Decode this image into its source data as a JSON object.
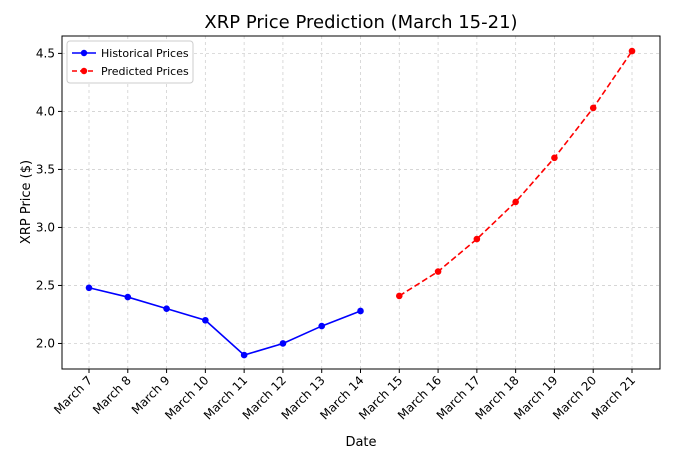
{
  "chart_data": {
    "type": "line",
    "title": "XRP Price Prediction (March 15-21)",
    "xlabel": "Date",
    "ylabel": "XRP Price ($)",
    "categories": [
      "March 7",
      "March 8",
      "March 9",
      "March 10",
      "March 11",
      "March 12",
      "March 13",
      "March 14",
      "March 15",
      "March 16",
      "March 17",
      "March 18",
      "March 19",
      "March 20",
      "March 21"
    ],
    "ylim": [
      1.78,
      4.65
    ],
    "yticks": [
      "2.0",
      "2.5",
      "3.0",
      "3.5",
      "4.0",
      "4.5"
    ],
    "grid": true,
    "legend_position": "top-left",
    "series": [
      {
        "name": "Historical Prices",
        "color": "#0000ff",
        "style": "solid",
        "x": [
          "March 7",
          "March 8",
          "March 9",
          "March 10",
          "March 11",
          "March 12",
          "March 13",
          "March 14"
        ],
        "values": [
          2.48,
          2.4,
          2.3,
          2.2,
          1.9,
          2.0,
          2.15,
          2.28
        ]
      },
      {
        "name": "Predicted Prices",
        "color": "#ff0000",
        "style": "dashed",
        "x": [
          "March 15",
          "March 16",
          "March 17",
          "March 18",
          "March 19",
          "March 20",
          "March 21"
        ],
        "values": [
          2.41,
          2.62,
          2.9,
          3.22,
          3.6,
          4.03,
          4.52
        ]
      }
    ]
  }
}
